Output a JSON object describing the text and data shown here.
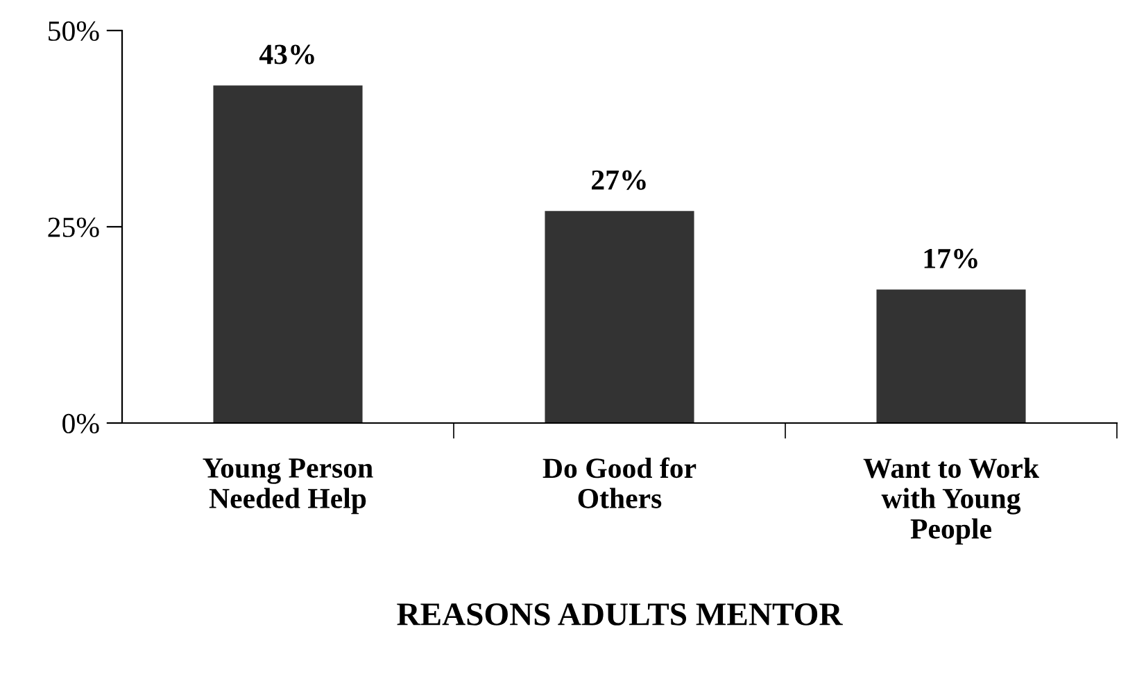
{
  "chart_data": {
    "type": "bar",
    "xlabel": "REASONS ADULTS MENTOR",
    "categories": [
      "Young Person\nNeeded Help",
      "Do Good for\nOthers",
      "Want to Work\nwith Young\nPeople"
    ],
    "values": [
      43,
      27,
      17
    ],
    "color": "#333333",
    "value_labels": [
      "43%",
      "27%",
      "17%"
    ],
    "ylim": [
      0,
      50
    ],
    "yticks": [
      {
        "value": 0,
        "label": "0%"
      },
      {
        "value": 25,
        "label": "25%"
      },
      {
        "value": 50,
        "label": "50%"
      }
    ],
    "grid": false,
    "legend": false
  }
}
